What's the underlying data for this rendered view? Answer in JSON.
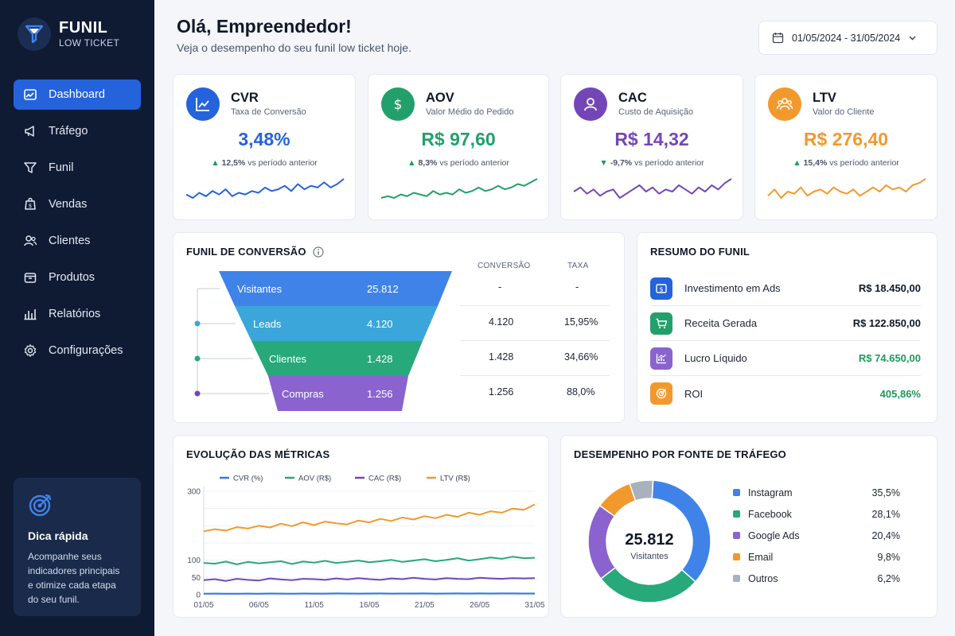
{
  "brand": {
    "title": "FUNIL",
    "subtitle": "LOW TICKET"
  },
  "sidebar": {
    "items": [
      {
        "label": "Dashboard",
        "icon": "dashboard-icon",
        "active": true
      },
      {
        "label": "Tráfego",
        "icon": "megaphone-icon"
      },
      {
        "label": "Funil",
        "icon": "funnel-icon"
      },
      {
        "label": "Vendas",
        "icon": "sales-icon"
      },
      {
        "label": "Clientes",
        "icon": "users-icon"
      },
      {
        "label": "Produtos",
        "icon": "box-icon"
      },
      {
        "label": "Relatórios",
        "icon": "bar-chart-icon"
      },
      {
        "label": "Configurações",
        "icon": "gear-icon"
      }
    ],
    "tip": {
      "title": "Dica rápida",
      "text": "Acompanhe seus indicadores principais e otimize cada etapa do seu funil."
    }
  },
  "header": {
    "greeting": "Olá, Empreendedor!",
    "subtitle": "Veja o desempenho do seu funil low ticket hoje.",
    "date_range": "01/05/2024 - 31/05/2024"
  },
  "kpis": [
    {
      "title": "CVR",
      "subtitle": "Taxa de Conversão",
      "value": "3,48%",
      "change": "12,5%",
      "direction": "up",
      "change_suffix": "vs período anterior",
      "color": "#2463db",
      "icon": "trend-chart-icon",
      "spark": [
        6,
        4,
        7,
        5,
        8,
        6,
        9,
        5,
        7,
        6,
        8,
        7,
        10,
        8,
        9,
        11,
        8,
        12,
        9,
        11,
        10,
        13,
        10,
        12,
        15
      ]
    },
    {
      "title": "AOV",
      "subtitle": "Valor Médio do Pedido",
      "value": "R$ 97,60",
      "change": "8,3%",
      "direction": "up",
      "change_suffix": "vs período anterior",
      "color": "#22a06b",
      "icon": "dollar-icon",
      "spark": [
        5,
        6,
        5,
        7,
        6,
        8,
        7,
        6,
        9,
        7,
        8,
        7,
        10,
        8,
        9,
        11,
        9,
        10,
        12,
        10,
        11,
        13,
        12,
        14,
        16
      ]
    },
    {
      "title": "CAC",
      "subtitle": "Custo de Aquisição",
      "value": "R$ 14,32",
      "change": "-9,7%",
      "direction": "down",
      "change_suffix": "vs período anterior",
      "color": "#7346b8",
      "icon": "person-icon",
      "spark": [
        9,
        11,
        8,
        10,
        7,
        9,
        10,
        6,
        8,
        10,
        12,
        9,
        11,
        8,
        10,
        9,
        12,
        10,
        8,
        11,
        9,
        12,
        10,
        13,
        15
      ]
    },
    {
      "title": "LTV",
      "subtitle": "Valor do Cliente",
      "value": "R$ 276,40",
      "change": "15,4%",
      "direction": "up",
      "change_suffix": "vs período anterior",
      "color": "#f2992e",
      "icon": "group-icon",
      "spark": [
        8,
        11,
        7,
        10,
        9,
        12,
        8,
        10,
        11,
        9,
        12,
        10,
        9,
        11,
        8,
        10,
        12,
        10,
        13,
        11,
        12,
        10,
        13,
        14,
        16
      ]
    }
  ],
  "funnel": {
    "title": "FUNIL DE CONVERSÃO",
    "col_conversion": "CONVERSÃO",
    "col_rate": "TAXA",
    "stages": [
      {
        "label": "Visitantes",
        "value": "25.812",
        "conversion": "-",
        "rate": "-",
        "color": "#3f83e8"
      },
      {
        "label": "Leads",
        "value": "4.120",
        "conversion": "4.120",
        "rate": "15,95%",
        "color": "#3ba6d9"
      },
      {
        "label": "Clientes",
        "value": "1.428",
        "conversion": "1.428",
        "rate": "34,66%",
        "color": "#27a97a"
      },
      {
        "label": "Compras",
        "value": "1.256",
        "conversion": "1.256",
        "rate": "88,0%",
        "color": "#8a63cf"
      }
    ]
  },
  "summary": {
    "title": "RESUMO DO FUNIL",
    "rows": [
      {
        "label": "Investimento em Ads",
        "value": "R$ 18.450,00",
        "icon": "dollar-bill-icon",
        "icon_color": "#2463db",
        "value_color": "#101828"
      },
      {
        "label": "Receita Gerada",
        "value": "R$ 122.850,00",
        "icon": "cart-icon",
        "icon_color": "#22a06b",
        "value_color": "#101828"
      },
      {
        "label": "Lucro Líquido",
        "value": "R$ 74.650,00",
        "icon": "chart-icon",
        "icon_color": "#8a63cf",
        "value_color": "#1e9a5a"
      },
      {
        "label": "ROI",
        "value": "405,86%",
        "icon": "target-icon",
        "icon_color": "#f2992e",
        "value_color": "#1e9a5a"
      }
    ]
  },
  "chart_data": [
    {
      "type": "line",
      "title": "EVOLUÇÃO DAS MÉTRICAS",
      "x": [
        "01/05",
        "02/05",
        "03/05",
        "04/05",
        "05/05",
        "06/05",
        "07/05",
        "08/05",
        "09/05",
        "10/05",
        "11/05",
        "12/05",
        "13/05",
        "14/05",
        "15/05",
        "16/05",
        "17/05",
        "18/05",
        "19/05",
        "20/05",
        "21/05",
        "22/05",
        "23/05",
        "24/05",
        "25/05",
        "26/05",
        "27/05",
        "28/05",
        "29/05",
        "30/05",
        "31/05"
      ],
      "x_ticks": [
        "01/05",
        "06/05",
        "11/05",
        "16/05",
        "21/05",
        "26/05",
        "31/05"
      ],
      "y_ticks": [
        0,
        50,
        100,
        150,
        200,
        250,
        300
      ],
      "y_tick_labels": [
        "0",
        "50",
        "100",
        "",
        "",
        "",
        "300"
      ],
      "ylim": [
        0,
        300
      ],
      "legend_position": "top",
      "series": [
        {
          "name": "CVR (%)",
          "color": "#2f7be6",
          "values": [
            3,
            3.2,
            2.8,
            3.1,
            3.3,
            3.0,
            3.4,
            3.2,
            3.1,
            3.5,
            3.3,
            3.2,
            3.6,
            3.4,
            3.3,
            3.5,
            3.6,
            3.2,
            3.4,
            3.5,
            3.7,
            3.3,
            3.5,
            3.6,
            3.4,
            3.8,
            3.5,
            3.6,
            3.7,
            3.5,
            3.5
          ]
        },
        {
          "name": "AOV (R$)",
          "color": "#27a97a",
          "values": [
            92,
            90,
            96,
            88,
            95,
            91,
            94,
            97,
            89,
            96,
            93,
            98,
            92,
            95,
            99,
            94,
            97,
            101,
            95,
            99,
            103,
            97,
            101,
            106,
            99,
            103,
            108,
            104,
            110,
            106,
            107
          ]
        },
        {
          "name": "CAC (R$)",
          "color": "#7346b8",
          "values": [
            42,
            45,
            40,
            46,
            43,
            41,
            47,
            44,
            42,
            46,
            45,
            43,
            47,
            44,
            48,
            45,
            43,
            47,
            45,
            49,
            46,
            44,
            48,
            46,
            45,
            49,
            47,
            46,
            48,
            47,
            48
          ]
        },
        {
          "name": "LTV (R$)",
          "color": "#f2992e",
          "values": [
            184,
            190,
            186,
            196,
            192,
            200,
            195,
            206,
            199,
            210,
            202,
            212,
            207,
            204,
            215,
            210,
            220,
            214,
            224,
            218,
            228,
            222,
            232,
            226,
            238,
            232,
            242,
            238,
            250,
            246,
            262
          ]
        }
      ]
    },
    {
      "type": "pie",
      "title": "DESEMPENHO POR FONTE DE TRÁFEGO",
      "center_value": "25.812",
      "center_label": "Visitantes",
      "categories": [
        "Instagram",
        "Facebook",
        "Google Ads",
        "Email",
        "Outros"
      ],
      "values": [
        35.5,
        28.1,
        20.4,
        9.8,
        6.2
      ],
      "value_labels": [
        "35,5%",
        "28,1%",
        "20,4%",
        "9,8%",
        "6,2%"
      ],
      "colors": [
        "#3f83e8",
        "#27a97a",
        "#8a63cf",
        "#f2992e",
        "#a9b1bd"
      ]
    }
  ]
}
